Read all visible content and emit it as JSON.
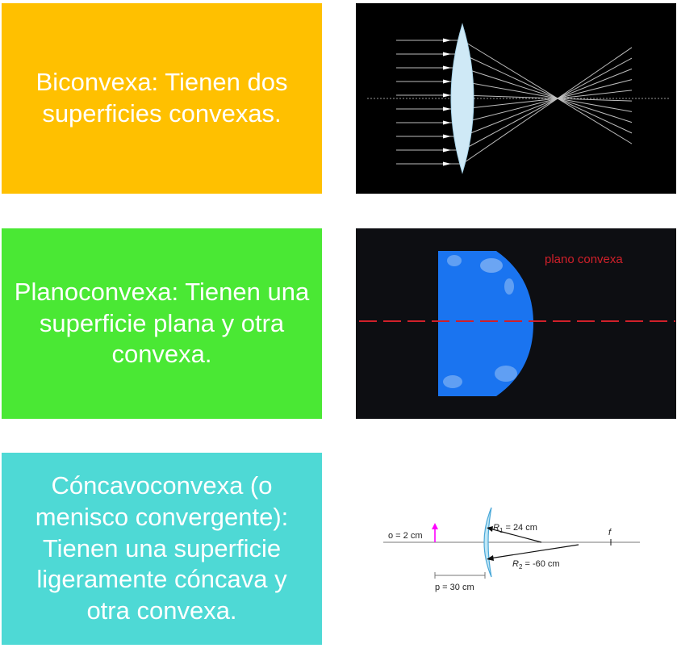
{
  "lens_types": [
    {
      "description": "Biconvexa: Tienen dos superficies convexas.",
      "color": "#FFC000"
    },
    {
      "description": "Planoconvexa: Tienen una superficie plana y otra convexa.",
      "color": "#4AE834"
    },
    {
      "description": "Cóncavoconvexa (o menisco convergente): Tienen una superficie ligeramente cóncava y otra convexa.",
      "color": "#4ED9D5"
    }
  ],
  "diagrams": {
    "biconvex": {
      "lens_color": "#cfe9f6",
      "ray_color": "#bdbdbd"
    },
    "planoconvex": {
      "label": "plano convexa",
      "lens_color": "#1a74f0",
      "axis_color": "#d0202a"
    },
    "meniscus": {
      "object_label": "o = 2 cm",
      "r1_label": "R",
      "r1_sub": "1",
      "r1_value": " = 24 cm",
      "r2_label": "R",
      "r2_sub": "2",
      "r2_value": " = -60 cm",
      "focal_label": "f",
      "distance_label": "p = 30 cm",
      "arrow_color": "#ff00ff"
    }
  }
}
